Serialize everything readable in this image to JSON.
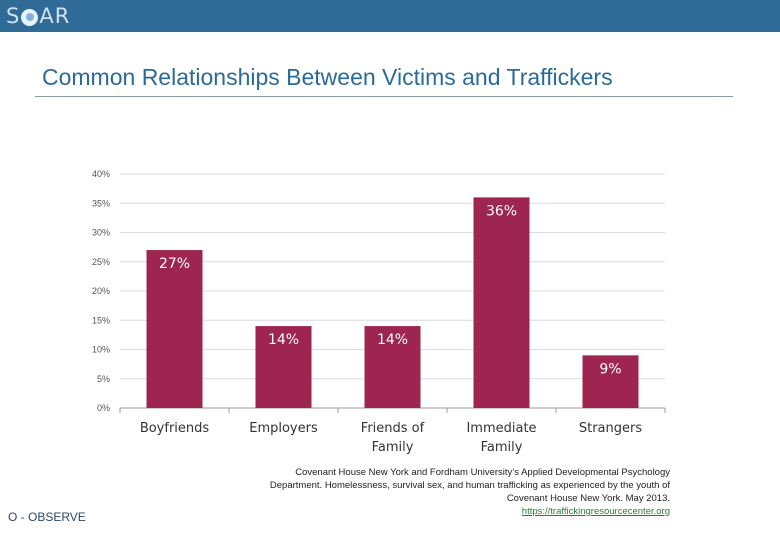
{
  "header": {
    "logo_text_left": "S",
    "logo_text_right": "AR"
  },
  "slide": {
    "title": "Common Relationships Between Victims and Traffickers"
  },
  "chart_data": {
    "type": "bar",
    "categories": [
      [
        "Boyfriends"
      ],
      [
        "Employers"
      ],
      [
        "Friends of",
        "Family"
      ],
      [
        "Immediate",
        "Family"
      ],
      [
        "Strangers"
      ]
    ],
    "values": [
      27,
      14,
      14,
      36,
      9
    ],
    "data_labels": [
      "27%",
      "14%",
      "14%",
      "36%",
      "9%"
    ],
    "y_ticks": [
      "0%",
      "5%",
      "10%",
      "15%",
      "20%",
      "25%",
      "30%",
      "35%",
      "40%"
    ],
    "ylim": [
      0,
      40
    ],
    "grid": true,
    "legend": "none",
    "bar_color": "#9e2550",
    "title": "",
    "xlabel": "",
    "ylabel": ""
  },
  "source": {
    "text": "Covenant House New York and Fordham University’s Applied Developmental Psychology Department. Homelessness, survival sex, and human trafficking as experienced by the youth of Covenant House New York. May 2013.",
    "link": "https://traffickingresourcecenter.org"
  },
  "footer": {
    "label": "O - OBSERVE"
  },
  "colors": {
    "header_bar": "#2f6b96",
    "title": "#2b6a9c",
    "link": "#2e7d32"
  }
}
